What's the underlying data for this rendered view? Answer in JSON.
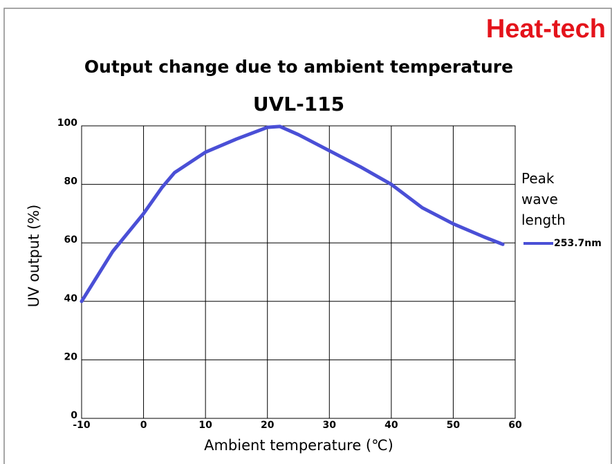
{
  "brand": "Heat-tech",
  "chart_data": {
    "type": "line",
    "title": "Output change due to ambient temperature",
    "subtitle": "UVL-115",
    "x_label": "Ambient temperature (℃)",
    "y_label": "UV output (%)",
    "legend_title": "Peak wave length",
    "x": [
      -10,
      -5,
      0,
      3,
      5,
      10,
      15,
      20,
      22,
      25,
      30,
      35,
      40,
      45,
      50,
      55,
      58
    ],
    "series": [
      {
        "name": "253.7nm",
        "color": "#4a4fd6",
        "values": [
          40,
          57,
          70,
          79,
          84,
          91,
          95.5,
          99.5,
          99.8,
          97,
          91.5,
          86,
          80,
          72,
          66.5,
          62,
          59.5
        ]
      }
    ],
    "xlim": [
      -10,
      60
    ],
    "xticks": [
      -10,
      0,
      10,
      20,
      30,
      40,
      50,
      60
    ],
    "ylim": [
      0,
      100
    ],
    "yticks": [
      0,
      20,
      40,
      60,
      80,
      100
    ],
    "grid": true,
    "legend": "right"
  }
}
